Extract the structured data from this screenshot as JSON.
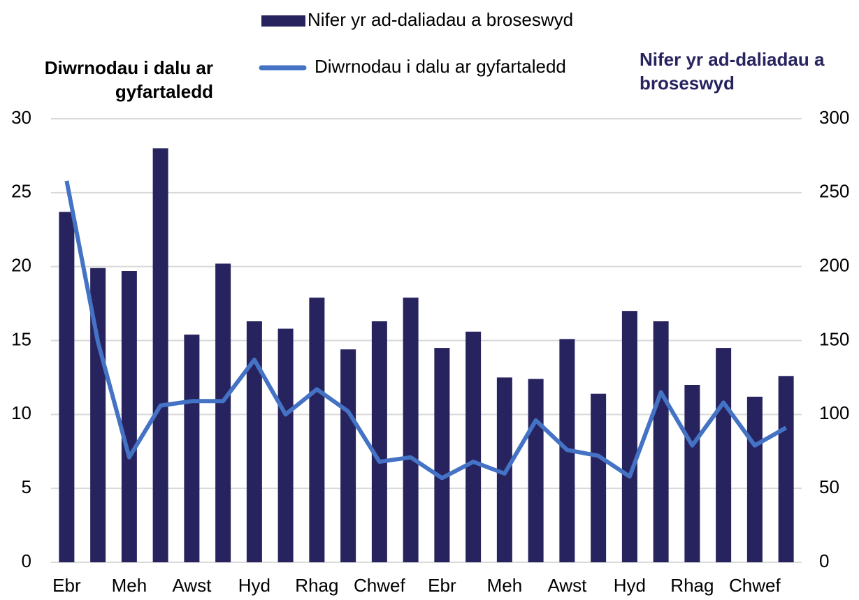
{
  "chart_data": {
    "type": "bar_line",
    "y_axis_title": "Diwrnodau i dalu ar gyfartaledd",
    "y2_axis_title": "Nifer yr ad-daliadau a broseswyd",
    "categories": [
      "Ebr",
      null,
      "Meh",
      null,
      "Awst",
      null,
      "Hyd",
      null,
      "Rhag",
      null,
      "Chwef",
      null,
      "Ebr",
      null,
      "Meh",
      null,
      "Awst",
      null,
      "Hyd",
      null,
      "Rhag",
      null,
      "Chwef",
      null
    ],
    "series": [
      {
        "name": "Nifer yr ad-daliadau a broseswyd",
        "type": "bar",
        "axis": "y2",
        "color": "#27235e",
        "values": [
          237,
          199,
          197,
          280,
          154,
          202,
          163,
          158,
          179,
          144,
          163,
          179,
          145,
          156,
          125,
          124,
          151,
          114,
          170,
          163,
          120,
          145,
          112,
          126
        ]
      },
      {
        "name": "Diwrnodau i dalu ar gyfartaledd",
        "type": "line",
        "axis": "y",
        "color": "#4472c4",
        "values": [
          25.8,
          14.9,
          7.1,
          10.6,
          10.9,
          10.9,
          13.7,
          10.0,
          11.7,
          10.2,
          6.8,
          7.1,
          5.7,
          6.8,
          6.0,
          9.6,
          7.6,
          7.2,
          5.8,
          11.5,
          7.9,
          10.8,
          7.9,
          9.1
        ]
      }
    ],
    "ylim": [
      0,
      30
    ],
    "yticks": [
      0,
      5,
      10,
      15,
      20,
      25,
      30
    ],
    "y2lim": [
      0,
      300
    ],
    "y2ticks": [
      0,
      50,
      100,
      150,
      200,
      250,
      300
    ],
    "grid": true
  }
}
